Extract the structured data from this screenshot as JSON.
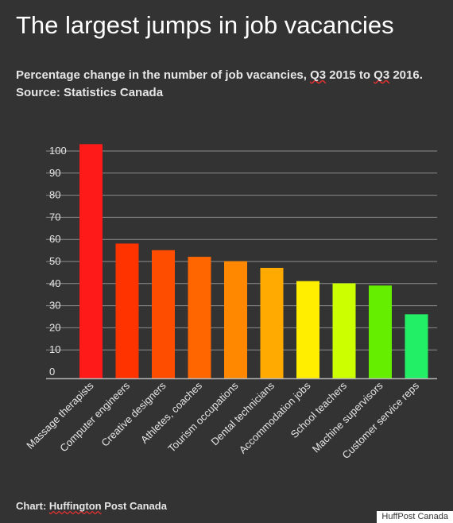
{
  "header": {
    "title": "The largest jumps in job vacancies",
    "subtitle_prefix": "Percentage change in the number of job vacancies, ",
    "subtitle_q1": "Q3",
    "subtitle_mid": " 2015 to ",
    "subtitle_q2": "Q3",
    "subtitle_suffix": " 2016.",
    "source": "Source: Statistics Canada"
  },
  "footer": {
    "credit_prefix": "Chart: ",
    "credit_name": "Huffington",
    "credit_suffix": " Post Canada",
    "watermark": "HuffPost Canada"
  },
  "chart_data": {
    "type": "bar",
    "categories": [
      "Massage therapists",
      "Computer engineers",
      "Creative designers",
      "Athletes, coaches",
      "Tourism occupations",
      "Dental technicians",
      "Accommodation jobs",
      "School teachers",
      "Machine supervisors",
      "Customer service reps"
    ],
    "values": [
      106,
      61,
      58,
      55,
      53,
      50,
      44,
      43,
      42,
      29
    ],
    "colors": [
      "#ff1a1a",
      "#ff3300",
      "#ff4d00",
      "#ff6600",
      "#ff8800",
      "#ffaa00",
      "#ffee00",
      "#ccff00",
      "#66ee00",
      "#22ee66"
    ],
    "yticks": [
      0,
      10,
      20,
      30,
      40,
      50,
      60,
      70,
      80,
      90,
      100
    ],
    "ylim": [
      0,
      106
    ],
    "grid": true,
    "axis_color": "#b3b3b3",
    "grid_color": "#8c8c8c"
  }
}
